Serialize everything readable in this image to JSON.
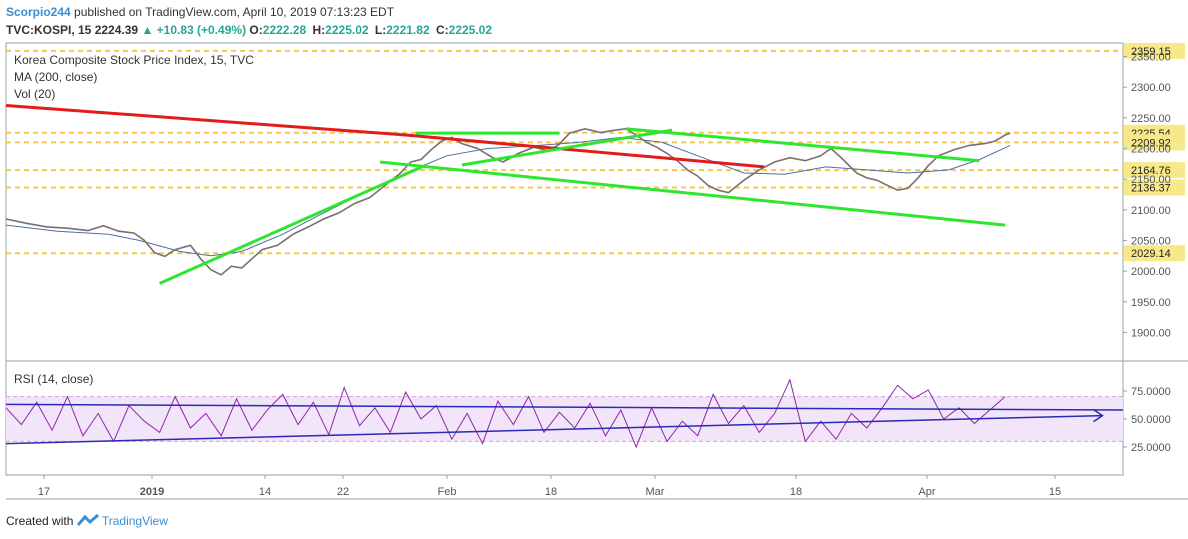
{
  "header": {
    "author": "Scorpio244",
    "published_text": "published on TradingView.com, April 10, 2019 07:13:23 EDT",
    "symbol": "TVC:KOSPI, 15",
    "last": "2224.39",
    "change_arrow": "▲",
    "change": "+10.83 (+0.49%)",
    "open_label": "O:",
    "open": "2222.28",
    "high_label": "H:",
    "high": "2225.02",
    "low_label": "L:",
    "low": "2221.82",
    "close_label": "C:",
    "close": "2225.02"
  },
  "legend": {
    "title": "Korea Composite Stock Price Index, 15, TVC",
    "ma": "MA (200, close)",
    "vol": "Vol (20)",
    "rsi": "RSI (14, close)"
  },
  "footer": {
    "created_with": "Created with",
    "brand": "TradingView"
  },
  "colors": {
    "candles": "#7a6e6e",
    "ma": "#4a6fa5",
    "red_trend": "#e31b1b",
    "green_trend": "#2ee62e",
    "level": "#f2c94c",
    "rsi_line": "#8e24aa",
    "rsi_band": "#f3e5f9",
    "rsi_trend": "#2b2bb5",
    "label_bg": "#f7e98a"
  },
  "chart_data": [
    {
      "type": "line",
      "title": "Korea Composite Stock Price Index, 15, TVC",
      "x_ticks": [
        "17",
        "2019",
        "14",
        "22",
        "Feb",
        "18",
        "Mar",
        "18",
        "Apr",
        "15"
      ],
      "ylim": [
        1855,
        2372
      ],
      "y_ticks": [
        "2350.00",
        "2300.00",
        "2250.00",
        "2200.00",
        "2150.00",
        "2100.00",
        "2050.00",
        "2000.00",
        "1950.00",
        "1900.00"
      ],
      "levels": [
        {
          "label": "2359.15",
          "value": 2359.15
        },
        {
          "label": "2225.54",
          "value": 2225.54
        },
        {
          "label": "2209.92",
          "value": 2209.92
        },
        {
          "label": "2164.76",
          "value": 2164.76
        },
        {
          "label": "2136.37",
          "value": 2136.37
        },
        {
          "label": "2029.14",
          "value": 2029.14
        }
      ],
      "price_series": {
        "name": "KOSPI",
        "points": [
          [
            0,
            2085
          ],
          [
            4,
            2078
          ],
          [
            8,
            2072
          ],
          [
            12,
            2070
          ],
          [
            16,
            2066
          ],
          [
            19,
            2074
          ],
          [
            22,
            2065
          ],
          [
            25,
            2062
          ],
          [
            27,
            2050
          ],
          [
            29,
            2030
          ],
          [
            31,
            2024
          ],
          [
            33,
            2035
          ],
          [
            36,
            2042
          ],
          [
            38,
            2020
          ],
          [
            40,
            2002
          ],
          [
            42,
            1994
          ],
          [
            44,
            2008
          ],
          [
            46,
            2005
          ],
          [
            48,
            2020
          ],
          [
            50,
            2035
          ],
          [
            53,
            2042
          ],
          [
            56,
            2060
          ],
          [
            59,
            2072
          ],
          [
            62,
            2085
          ],
          [
            65,
            2095
          ],
          [
            68,
            2110
          ],
          [
            71,
            2120
          ],
          [
            74,
            2140
          ],
          [
            77,
            2160
          ],
          [
            79,
            2178
          ],
          [
            81,
            2182
          ],
          [
            83,
            2198
          ],
          [
            85,
            2212
          ],
          [
            87,
            2218
          ],
          [
            89,
            2208
          ],
          [
            92,
            2200
          ],
          [
            95,
            2185
          ],
          [
            97,
            2178
          ],
          [
            100,
            2192
          ],
          [
            103,
            2202
          ],
          [
            106,
            2196
          ],
          [
            108,
            2207
          ],
          [
            110,
            2225
          ],
          [
            113,
            2232
          ],
          [
            116,
            2226
          ],
          [
            119,
            2230
          ],
          [
            121,
            2232
          ],
          [
            123,
            2222
          ],
          [
            125,
            2210
          ],
          [
            127,
            2202
          ],
          [
            129,
            2192
          ],
          [
            131,
            2180
          ],
          [
            133,
            2165
          ],
          [
            135,
            2155
          ],
          [
            137,
            2140
          ],
          [
            139,
            2132
          ],
          [
            141,
            2128
          ],
          [
            144,
            2148
          ],
          [
            147,
            2165
          ],
          [
            150,
            2178
          ],
          [
            153,
            2185
          ],
          [
            156,
            2180
          ],
          [
            159,
            2188
          ],
          [
            161,
            2200
          ],
          [
            163,
            2185
          ],
          [
            166,
            2160
          ],
          [
            168,
            2152
          ],
          [
            170,
            2148
          ],
          [
            172,
            2140
          ],
          [
            174,
            2132
          ],
          [
            176,
            2135
          ],
          [
            178,
            2152
          ],
          [
            180,
            2172
          ],
          [
            182,
            2188
          ],
          [
            185,
            2198
          ],
          [
            188,
            2205
          ],
          [
            191,
            2208
          ],
          [
            193,
            2212
          ],
          [
            195,
            2222
          ],
          [
            196,
            2225
          ]
        ]
      },
      "ma_series": {
        "name": "MA (200, close)",
        "points": [
          [
            0,
            2075
          ],
          [
            10,
            2065
          ],
          [
            20,
            2060
          ],
          [
            26,
            2050
          ],
          [
            34,
            2032
          ],
          [
            40,
            2025
          ],
          [
            46,
            2032
          ],
          [
            54,
            2060
          ],
          [
            62,
            2095
          ],
          [
            70,
            2128
          ],
          [
            78,
            2160
          ],
          [
            86,
            2188
          ],
          [
            94,
            2200
          ],
          [
            104,
            2205
          ],
          [
            112,
            2210
          ],
          [
            120,
            2218
          ],
          [
            128,
            2210
          ],
          [
            136,
            2185
          ],
          [
            144,
            2160
          ],
          [
            152,
            2158
          ],
          [
            160,
            2170
          ],
          [
            168,
            2165
          ],
          [
            176,
            2160
          ],
          [
            184,
            2165
          ],
          [
            190,
            2182
          ],
          [
            196,
            2205
          ]
        ]
      },
      "trend_lines": [
        {
          "name": "red-trend",
          "color": "red",
          "points": [
            [
              0,
              2270
            ],
            [
              78,
              2222
            ],
            [
              148,
              2170
            ]
          ]
        },
        {
          "name": "green-support",
          "color": "green",
          "points": [
            [
              30,
              1980
            ],
            [
              82,
              2173
            ]
          ]
        },
        {
          "name": "green-channel-top",
          "color": "green",
          "points": [
            [
              80,
              2225
            ],
            [
              108,
              2225
            ]
          ]
        },
        {
          "name": "green-wedge",
          "color": "green",
          "points": [
            [
              89,
              2173
            ],
            [
              130,
              2230
            ]
          ]
        },
        {
          "name": "green-upper",
          "color": "green",
          "points": [
            [
              121,
              2232
            ],
            [
              190,
              2180
            ]
          ]
        },
        {
          "name": "green-lower",
          "color": "green",
          "points": [
            [
              73,
              2178
            ],
            [
              195,
              2075
            ]
          ]
        }
      ]
    },
    {
      "type": "line",
      "title": "RSI (14, close)",
      "ylim": [
        0,
        100
      ],
      "y_ticks": [
        "75.0000",
        "50.0000",
        "25.0000"
      ],
      "band": [
        30,
        70
      ],
      "series": {
        "name": "RSI (14, close)",
        "points": [
          [
            0,
            60
          ],
          [
            3,
            45
          ],
          [
            6,
            65
          ],
          [
            9,
            40
          ],
          [
            12,
            70
          ],
          [
            15,
            35
          ],
          [
            18,
            55
          ],
          [
            21,
            30
          ],
          [
            24,
            62
          ],
          [
            27,
            48
          ],
          [
            30,
            38
          ],
          [
            33,
            70
          ],
          [
            36,
            42
          ],
          [
            39,
            55
          ],
          [
            42,
            35
          ],
          [
            45,
            68
          ],
          [
            48,
            40
          ],
          [
            51,
            58
          ],
          [
            54,
            72
          ],
          [
            57,
            45
          ],
          [
            60,
            65
          ],
          [
            63,
            36
          ],
          [
            66,
            78
          ],
          [
            69,
            44
          ],
          [
            72,
            60
          ],
          [
            75,
            38
          ],
          [
            78,
            74
          ],
          [
            81,
            50
          ],
          [
            84,
            62
          ],
          [
            87,
            32
          ],
          [
            90,
            55
          ],
          [
            93,
            28
          ],
          [
            96,
            66
          ],
          [
            99,
            45
          ],
          [
            102,
            70
          ],
          [
            105,
            38
          ],
          [
            108,
            56
          ],
          [
            111,
            42
          ],
          [
            114,
            64
          ],
          [
            117,
            35
          ],
          [
            120,
            58
          ],
          [
            123,
            25
          ],
          [
            126,
            60
          ],
          [
            129,
            30
          ],
          [
            132,
            48
          ],
          [
            135,
            35
          ],
          [
            138,
            72
          ],
          [
            141,
            46
          ],
          [
            144,
            62
          ],
          [
            147,
            38
          ],
          [
            150,
            55
          ],
          [
            153,
            85
          ],
          [
            156,
            30
          ],
          [
            159,
            48
          ],
          [
            162,
            32
          ],
          [
            165,
            55
          ],
          [
            168,
            42
          ],
          [
            171,
            60
          ],
          [
            174,
            80
          ],
          [
            177,
            68
          ],
          [
            180,
            76
          ],
          [
            183,
            50
          ],
          [
            186,
            60
          ],
          [
            189,
            46
          ],
          [
            192,
            58
          ],
          [
            195,
            70
          ]
        ]
      },
      "trend_lines": [
        {
          "name": "rsi-upper",
          "color": "blue",
          "points": [
            [
              0,
              63
            ],
            [
              218,
              58
            ]
          ]
        },
        {
          "name": "rsi-lower",
          "color": "blue",
          "points": [
            [
              0,
              28
            ],
            [
              214,
              53
            ]
          ]
        }
      ]
    }
  ]
}
